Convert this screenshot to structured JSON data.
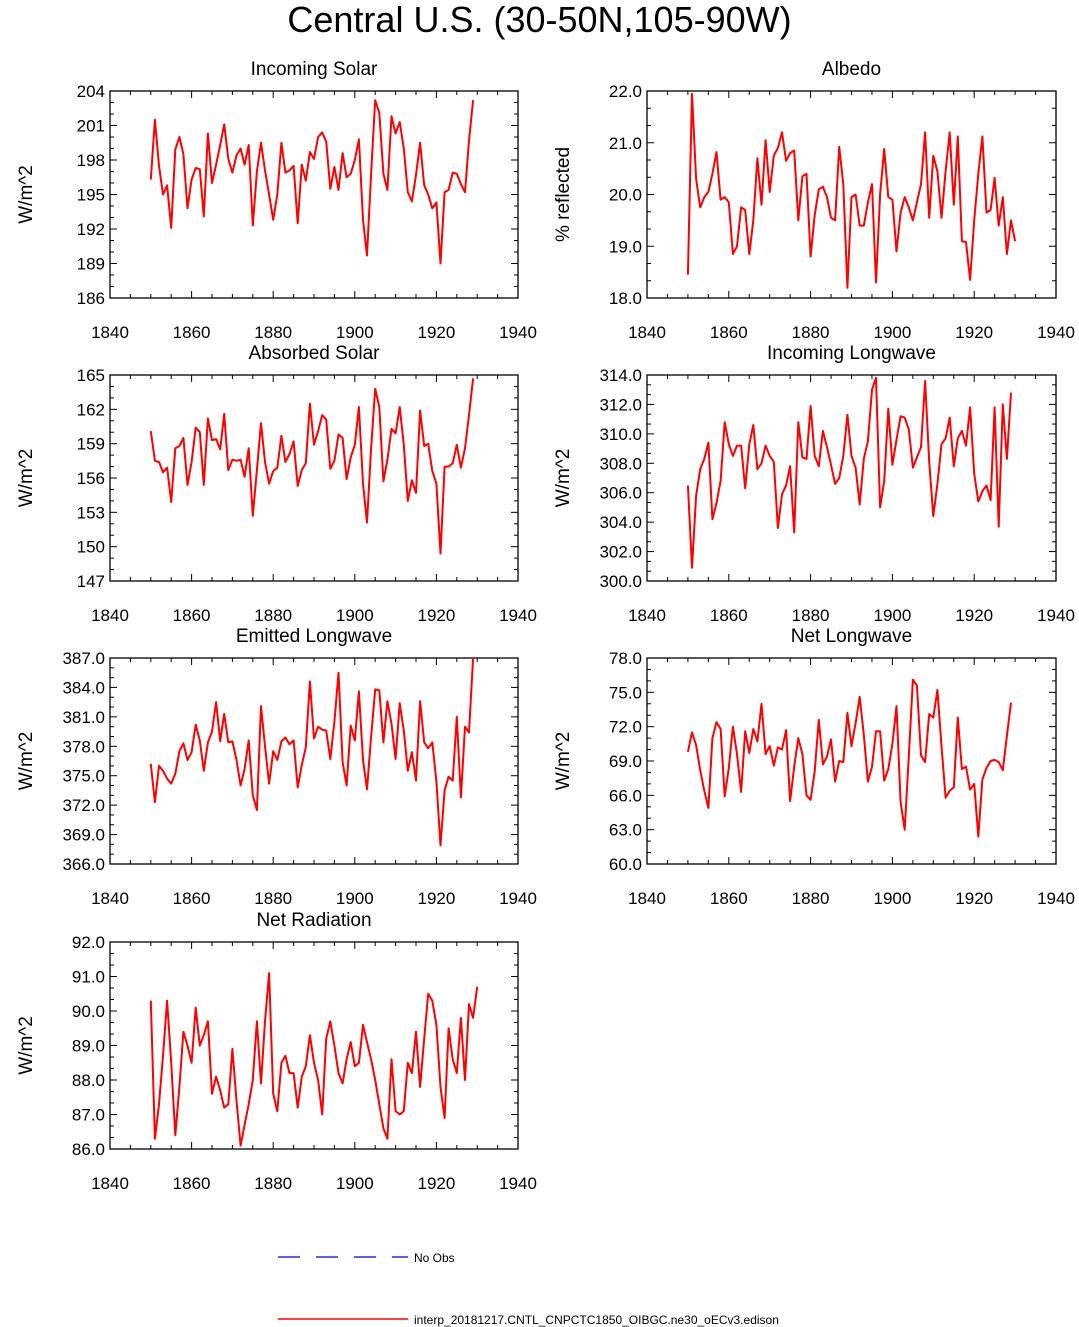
{
  "title": "Central U.S. (30-50N,105-90W)",
  "colors": {
    "model_line": "#ff0000",
    "obs_line": "#0000cc",
    "axis": "#000000"
  },
  "legend": {
    "obs_label": "No Obs",
    "model_label": "interp_20181217.CNTL_CNPCTC1850_OIBGC.ne30_oECv3.edison"
  },
  "chart_data": [
    {
      "type": "line",
      "title": "Incoming Solar",
      "ylabel": "W/m^2",
      "xlim": [
        1840,
        1940
      ],
      "ylim": [
        186,
        204
      ],
      "x_ticks": [
        1840,
        1860,
        1880,
        1900,
        1920,
        1940
      ],
      "y_ticks": [
        "186",
        "189",
        "192",
        "195",
        "198",
        "201",
        "204"
      ],
      "x_start": 1850,
      "series": [
        {
          "name": "interp_20181217.CNTL_CNPCTC1850_OIBGC.ne30_oECv3.edison",
          "values": [
            196.3,
            201.5,
            197.5,
            195.0,
            195.8,
            192.1,
            198.9,
            200.0,
            198.5,
            193.8,
            196.3,
            197.3,
            197.2,
            193.1,
            200.3,
            196.0,
            197.6,
            199.3,
            201.1,
            198.1,
            196.9,
            198.4,
            199.0,
            197.6,
            199.3,
            192.3,
            197.0,
            199.5,
            197.1,
            195.0,
            192.8,
            195.0,
            199.5,
            196.9,
            197.1,
            197.5,
            192.5,
            197.6,
            196.2,
            198.7,
            198.1,
            200.0,
            200.4,
            199.6,
            195.5,
            197.4,
            195.4,
            198.6,
            196.5,
            196.8,
            198.0,
            199.8,
            192.8,
            189.7,
            196.8,
            203.2,
            202.1,
            196.8,
            195.4,
            201.8,
            200.3,
            201.3,
            199.0,
            195.2,
            194.4,
            196.7,
            199.5,
            195.8,
            195.0,
            193.8,
            194.3,
            189.0,
            195.2,
            195.4,
            196.9,
            196.8,
            195.9,
            195.2,
            199.7,
            203.2
          ]
        }
      ]
    },
    {
      "type": "line",
      "title": "Albedo",
      "ylabel": "% reflected",
      "xlim": [
        1840,
        1940
      ],
      "ylim": [
        18,
        22
      ],
      "x_ticks": [
        1840,
        1860,
        1880,
        1900,
        1920,
        1940
      ],
      "y_ticks": [
        "18.0",
        "19.0",
        "20.0",
        "21.0",
        "22.0"
      ],
      "x_start": 1850,
      "series": [
        {
          "name": "interp_20181217.CNTL_CNPCTC1850_OIBGC.ne30_oECv3.edison",
          "values": [
            18.45,
            21.95,
            20.3,
            19.75,
            19.95,
            20.05,
            20.4,
            20.82,
            19.9,
            19.95,
            19.85,
            18.85,
            19.0,
            19.75,
            19.7,
            18.85,
            19.5,
            20.7,
            19.8,
            21.05,
            20.05,
            20.75,
            20.9,
            21.2,
            20.65,
            20.8,
            20.85,
            19.5,
            20.35,
            20.4,
            18.8,
            19.6,
            20.1,
            20.15,
            19.95,
            19.55,
            19.5,
            20.92,
            20.2,
            18.2,
            19.95,
            20.0,
            19.4,
            19.4,
            19.85,
            20.2,
            18.3,
            20.0,
            20.88,
            19.95,
            19.9,
            18.9,
            19.65,
            19.95,
            19.75,
            19.5,
            19.85,
            20.2,
            21.2,
            19.55,
            20.75,
            20.45,
            19.55,
            20.45,
            21.2,
            19.8,
            21.12,
            19.1,
            19.08,
            18.35,
            19.5,
            20.4,
            21.12,
            19.65,
            19.7,
            20.32,
            19.4,
            19.95,
            18.85,
            19.5,
            19.1
          ]
        }
      ]
    },
    {
      "type": "line",
      "title": "Absorbed Solar",
      "ylabel": "W/m^2",
      "xlim": [
        1840,
        1940
      ],
      "ylim": [
        147,
        165
      ],
      "x_ticks": [
        1840,
        1860,
        1880,
        1900,
        1920,
        1940
      ],
      "y_ticks": [
        "147",
        "150",
        "153",
        "156",
        "159",
        "162",
        "165"
      ],
      "x_start": 1850,
      "series": [
        {
          "name": "interp_20181217.CNTL_CNPCTC1850_OIBGC.ne30_oECv3.edison",
          "values": [
            160.1,
            157.5,
            157.4,
            156.5,
            156.9,
            153.9,
            158.6,
            158.8,
            159.5,
            155.4,
            157.4,
            160.4,
            160.0,
            155.4,
            161.2,
            159.3,
            159.4,
            158.5,
            161.6,
            156.7,
            157.6,
            157.5,
            157.6,
            156.1,
            158.6,
            152.7,
            156.7,
            160.8,
            157.4,
            155.5,
            156.6,
            156.9,
            159.7,
            157.4,
            158.1,
            159.2,
            155.3,
            156.7,
            157.3,
            162.5,
            158.9,
            160.1,
            161.5,
            161.1,
            156.8,
            157.5,
            159.8,
            159.5,
            155.9,
            157.8,
            158.9,
            162.2,
            155.5,
            152.1,
            158.6,
            163.8,
            162.2,
            155.7,
            157.6,
            160.3,
            159.9,
            162.2,
            158.9,
            154.0,
            155.8,
            154.7,
            161.9,
            158.8,
            159.0,
            156.6,
            155.5,
            149.4,
            157.0,
            157.0,
            157.3,
            158.9,
            156.9,
            158.6,
            161.5,
            164.7
          ]
        }
      ]
    },
    {
      "type": "line",
      "title": "Incoming Longwave",
      "ylabel": "W/m^2",
      "xlim": [
        1840,
        1940
      ],
      "ylim": [
        300,
        314
      ],
      "x_ticks": [
        1840,
        1860,
        1880,
        1900,
        1920,
        1940
      ],
      "y_ticks": [
        "300.0",
        "302.0",
        "304.0",
        "306.0",
        "308.0",
        "310.0",
        "312.0",
        "314.0"
      ],
      "x_start": 1850,
      "series": [
        {
          "name": "interp_20181217.CNTL_CNPCTC1850_OIBGC.ne30_oECv3.edison",
          "values": [
            306.5,
            300.9,
            305.8,
            307.6,
            308.3,
            309.4,
            304.2,
            305.3,
            306.8,
            310.8,
            309.3,
            308.5,
            309.2,
            309.2,
            306.3,
            309.3,
            310.6,
            307.6,
            308.0,
            309.2,
            308.5,
            308.1,
            303.6,
            305.9,
            306.5,
            307.8,
            303.3,
            310.8,
            308.4,
            308.3,
            311.9,
            308.5,
            307.8,
            310.2,
            309.1,
            307.9,
            306.6,
            307.0,
            308.5,
            311.3,
            308.5,
            307.7,
            305.2,
            308.3,
            309.5,
            313.0,
            313.8,
            305.0,
            306.8,
            311.7,
            307.9,
            309.6,
            311.2,
            311.1,
            310.3,
            307.7,
            308.4,
            309.1,
            313.6,
            308.1,
            304.4,
            306.6,
            309.3,
            309.7,
            311.1,
            307.8,
            309.7,
            310.2,
            309.2,
            311.8,
            307.3,
            305.4,
            306.1,
            306.5,
            305.5,
            311.8,
            303.7,
            312.0,
            308.3,
            312.8
          ]
        }
      ]
    },
    {
      "type": "line",
      "title": "Emitted Longwave",
      "ylabel": "W/m^2",
      "xlim": [
        1840,
        1940
      ],
      "ylim": [
        366,
        387
      ],
      "x_ticks": [
        1840,
        1860,
        1880,
        1900,
        1920,
        1940
      ],
      "y_ticks": [
        "366.0",
        "369.0",
        "372.0",
        "375.0",
        "378.0",
        "381.0",
        "384.0",
        "387.0"
      ],
      "x_start": 1850,
      "series": [
        {
          "name": "interp_20181217.CNTL_CNPCTC1850_OIBGC.ne30_oECv3.edison",
          "values": [
            376.2,
            372.3,
            376.0,
            375.5,
            374.7,
            374.2,
            375.2,
            377.5,
            378.3,
            376.6,
            377.4,
            380.2,
            378.6,
            375.5,
            378.4,
            379.5,
            382.5,
            378.5,
            381.3,
            378.4,
            378.5,
            376.6,
            374.0,
            375.7,
            378.6,
            373.0,
            371.5,
            382.1,
            378.0,
            374.2,
            377.5,
            376.6,
            378.5,
            378.9,
            378.2,
            378.6,
            373.8,
            376.1,
            377.9,
            384.6,
            378.8,
            380.0,
            379.7,
            379.6,
            376.7,
            380.5,
            385.5,
            376.4,
            374.0,
            380.1,
            378.6,
            383.6,
            376.6,
            373.6,
            379.0,
            383.8,
            383.7,
            378.4,
            382.6,
            380.3,
            376.7,
            382.4,
            379.6,
            375.5,
            377.4,
            374.5,
            382.6,
            378.4,
            377.8,
            378.4,
            374.4,
            367.9,
            373.5,
            374.9,
            374.5,
            381.0,
            372.8,
            380.0,
            379.4,
            387.0
          ]
        }
      ]
    },
    {
      "type": "line",
      "title": "Net Longwave",
      "ylabel": "W/m^2",
      "xlim": [
        1840,
        1940
      ],
      "ylim": [
        60,
        78
      ],
      "x_ticks": [
        1840,
        1860,
        1880,
        1900,
        1920,
        1940
      ],
      "y_ticks": [
        "60.0",
        "63.0",
        "66.0",
        "69.0",
        "72.0",
        "75.0",
        "78.0"
      ],
      "x_start": 1850,
      "series": [
        {
          "name": "interp_20181217.CNTL_CNPCTC1850_OIBGC.ne30_oECv3.edison",
          "values": [
            69.8,
            71.5,
            70.4,
            68.2,
            66.4,
            64.9,
            71.0,
            72.4,
            71.8,
            65.9,
            68.4,
            72.0,
            69.6,
            66.3,
            71.6,
            69.7,
            71.8,
            70.7,
            74.0,
            69.6,
            70.3,
            68.6,
            70.2,
            70.0,
            71.7,
            65.5,
            68.5,
            71.0,
            69.6,
            66.0,
            65.6,
            68.1,
            72.6,
            68.7,
            69.4,
            70.9,
            67.2,
            69.0,
            68.9,
            73.2,
            70.3,
            72.3,
            74.6,
            71.3,
            67.2,
            68.5,
            71.6,
            71.6,
            67.3,
            68.3,
            70.5,
            73.8,
            65.4,
            63.0,
            69.4,
            76.1,
            75.6,
            69.5,
            68.9,
            73.1,
            72.8,
            75.2,
            70.3,
            65.8,
            66.4,
            66.7,
            72.8,
            68.3,
            68.5,
            66.5,
            67.0,
            62.4,
            67.4,
            68.4,
            69.0,
            69.1,
            68.9,
            68.2,
            71.2,
            74.1
          ]
        }
      ]
    },
    {
      "type": "line",
      "title": "Net Radiation",
      "ylabel": "W/m^2",
      "xlim": [
        1840,
        1940
      ],
      "ylim": [
        86,
        92
      ],
      "x_ticks": [
        1840,
        1860,
        1880,
        1900,
        1920,
        1940
      ],
      "y_ticks": [
        "86.0",
        "87.0",
        "88.0",
        "89.0",
        "90.0",
        "91.0",
        "92.0"
      ],
      "x_start": 1850,
      "series": [
        {
          "name": "interp_20181217.CNTL_CNPCTC1850_OIBGC.ne30_oECv3.edison",
          "values": [
            90.3,
            86.3,
            87.3,
            88.7,
            90.3,
            88.5,
            86.4,
            87.8,
            89.4,
            89.0,
            88.5,
            90.1,
            89.0,
            89.3,
            89.7,
            87.6,
            88.1,
            87.7,
            87.2,
            87.3,
            88.9,
            87.4,
            86.1,
            86.7,
            87.3,
            88.0,
            89.7,
            87.9,
            89.7,
            91.1,
            87.6,
            87.1,
            88.5,
            88.7,
            88.2,
            88.2,
            87.2,
            88.1,
            88.4,
            89.3,
            88.5,
            88.0,
            87.0,
            89.2,
            89.7,
            89.0,
            88.2,
            87.9,
            88.6,
            89.1,
            88.4,
            88.5,
            89.6,
            89.1,
            88.6,
            88.0,
            87.3,
            86.6,
            86.3,
            88.6,
            87.1,
            87.0,
            87.1,
            88.5,
            88.2,
            89.4,
            87.8,
            89.2,
            90.5,
            90.3,
            89.6,
            87.8,
            86.9,
            89.5,
            88.6,
            88.2,
            89.8,
            88.0,
            90.2,
            89.8,
            90.7
          ]
        }
      ]
    }
  ]
}
